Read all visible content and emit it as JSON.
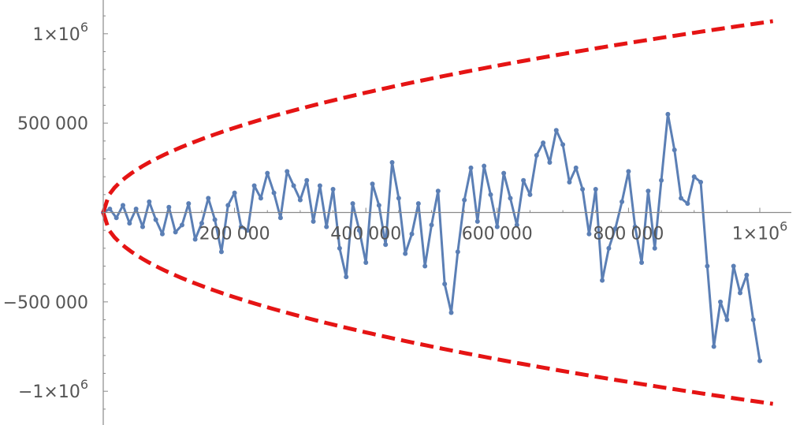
{
  "chart_data": {
    "type": "scatter",
    "title": "",
    "xlabel": "",
    "ylabel": "",
    "xlim": [
      0,
      1030000
    ],
    "ylim": [
      -1180000,
      1180000
    ],
    "grid": false,
    "legend": "none",
    "x_ticks": [
      {
        "value": 200000,
        "base": "200",
        "group": "000",
        "exp": ""
      },
      {
        "value": 400000,
        "base": "400",
        "group": "000",
        "exp": ""
      },
      {
        "value": 600000,
        "base": "600",
        "group": "000",
        "exp": ""
      },
      {
        "value": 800000,
        "base": "800",
        "group": "000",
        "exp": ""
      },
      {
        "value": 1000000,
        "base": "1×10",
        "group": "",
        "exp": "6"
      }
    ],
    "y_ticks": [
      {
        "value": 1000000,
        "base": "1×10",
        "group": "",
        "exp": "6"
      },
      {
        "value": 500000,
        "base": "500",
        "group": "000",
        "exp": ""
      },
      {
        "value": -500000,
        "base": "−500",
        "group": "000",
        "exp": ""
      },
      {
        "value": -1000000,
        "base": "−1×10",
        "group": "",
        "exp": "6"
      }
    ],
    "series": [
      {
        "kind": "points",
        "color": "#5b7fb5",
        "points": [
          [
            0,
            0
          ],
          [
            10000,
            20000
          ],
          [
            20000,
            -30000
          ],
          [
            30000,
            40000
          ],
          [
            40000,
            -60000
          ],
          [
            50000,
            20000
          ],
          [
            60000,
            -80000
          ],
          [
            70000,
            60000
          ],
          [
            80000,
            -40000
          ],
          [
            90000,
            -120000
          ],
          [
            100000,
            30000
          ],
          [
            110000,
            -110000
          ],
          [
            120000,
            -70000
          ],
          [
            130000,
            50000
          ],
          [
            140000,
            -150000
          ],
          [
            150000,
            -60000
          ],
          [
            160000,
            80000
          ],
          [
            170000,
            -40000
          ],
          [
            180000,
            -220000
          ],
          [
            190000,
            40000
          ],
          [
            200000,
            110000
          ],
          [
            210000,
            -80000
          ],
          [
            220000,
            -100000
          ],
          [
            230000,
            150000
          ],
          [
            240000,
            80000
          ],
          [
            250000,
            220000
          ],
          [
            260000,
            110000
          ],
          [
            270000,
            -30000
          ],
          [
            280000,
            230000
          ],
          [
            290000,
            150000
          ],
          [
            300000,
            70000
          ],
          [
            310000,
            180000
          ],
          [
            320000,
            -50000
          ],
          [
            330000,
            150000
          ],
          [
            340000,
            -80000
          ],
          [
            350000,
            130000
          ],
          [
            360000,
            -200000
          ],
          [
            370000,
            -360000
          ],
          [
            380000,
            50000
          ],
          [
            390000,
            -100000
          ],
          [
            400000,
            -280000
          ],
          [
            410000,
            160000
          ],
          [
            420000,
            40000
          ],
          [
            430000,
            -180000
          ],
          [
            440000,
            280000
          ],
          [
            450000,
            80000
          ],
          [
            460000,
            -230000
          ],
          [
            470000,
            -120000
          ],
          [
            480000,
            50000
          ],
          [
            490000,
            -300000
          ],
          [
            500000,
            -70000
          ],
          [
            510000,
            120000
          ],
          [
            520000,
            -400000
          ],
          [
            530000,
            -560000
          ],
          [
            540000,
            -220000
          ],
          [
            550000,
            70000
          ],
          [
            560000,
            250000
          ],
          [
            570000,
            -50000
          ],
          [
            580000,
            260000
          ],
          [
            590000,
            100000
          ],
          [
            600000,
            -80000
          ],
          [
            610000,
            220000
          ],
          [
            620000,
            80000
          ],
          [
            630000,
            -70000
          ],
          [
            640000,
            180000
          ],
          [
            650000,
            100000
          ],
          [
            660000,
            320000
          ],
          [
            670000,
            390000
          ],
          [
            680000,
            280000
          ],
          [
            690000,
            460000
          ],
          [
            700000,
            380000
          ],
          [
            710000,
            170000
          ],
          [
            720000,
            250000
          ],
          [
            730000,
            130000
          ],
          [
            740000,
            -120000
          ],
          [
            750000,
            130000
          ],
          [
            760000,
            -380000
          ],
          [
            770000,
            -200000
          ],
          [
            780000,
            -90000
          ],
          [
            790000,
            60000
          ],
          [
            800000,
            230000
          ],
          [
            810000,
            -80000
          ],
          [
            820000,
            -280000
          ],
          [
            830000,
            120000
          ],
          [
            840000,
            -200000
          ],
          [
            850000,
            180000
          ],
          [
            860000,
            550000
          ],
          [
            870000,
            350000
          ],
          [
            880000,
            80000
          ],
          [
            890000,
            50000
          ],
          [
            900000,
            200000
          ],
          [
            910000,
            170000
          ],
          [
            920000,
            -300000
          ],
          [
            930000,
            -750000
          ],
          [
            940000,
            -500000
          ],
          [
            950000,
            -600000
          ],
          [
            960000,
            -300000
          ],
          [
            970000,
            -450000
          ],
          [
            980000,
            -350000
          ],
          [
            990000,
            -600000
          ],
          [
            1000000,
            -830000
          ]
        ]
      },
      {
        "kind": "upper-envelope",
        "color": "#e51414",
        "style": "dashed",
        "formula_note": "",
        "x_range": [
          0,
          1020000
        ],
        "scale": 1060000
      },
      {
        "kind": "lower-envelope",
        "color": "#e51414",
        "style": "dashed",
        "x_range": [
          0,
          1020000
        ],
        "scale": -1060000
      }
    ]
  }
}
